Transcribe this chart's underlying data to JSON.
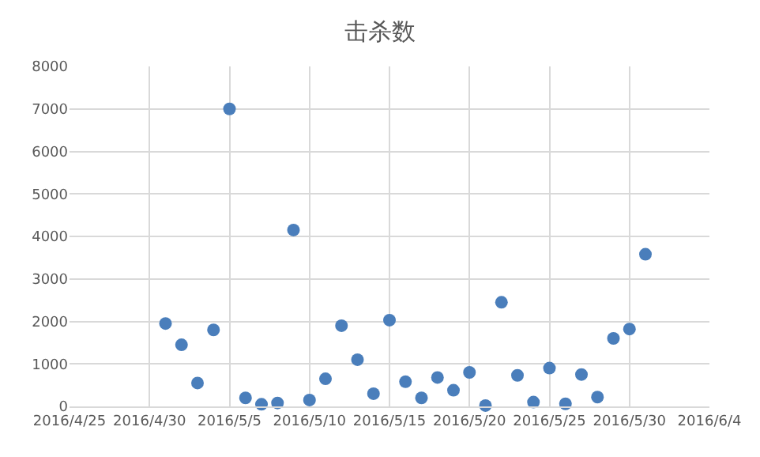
{
  "chart_data": {
    "type": "scatter",
    "title": "击杀数",
    "x": [
      "2016-05-01",
      "2016-05-02",
      "2016-05-03",
      "2016-05-04",
      "2016-05-05",
      "2016-05-06",
      "2016-05-07",
      "2016-05-08",
      "2016-05-09",
      "2016-05-10",
      "2016-05-11",
      "2016-05-12",
      "2016-05-13",
      "2016-05-14",
      "2016-05-15",
      "2016-05-16",
      "2016-05-17",
      "2016-05-18",
      "2016-05-19",
      "2016-05-20",
      "2016-05-21",
      "2016-05-22",
      "2016-05-23",
      "2016-05-24",
      "2016-05-25",
      "2016-05-26",
      "2016-05-27",
      "2016-05-28",
      "2016-05-29",
      "2016-05-30",
      "2016-05-31"
    ],
    "series": [
      {
        "color": "#4a7ebb",
        "values": [
          1950,
          1450,
          550,
          1800,
          7000,
          200,
          50,
          80,
          4150,
          150,
          650,
          1900,
          1100,
          300,
          2030,
          580,
          200,
          680,
          380,
          800,
          20,
          2450,
          730,
          100,
          900,
          60,
          750,
          220,
          1600,
          1820,
          3580
        ]
      }
    ],
    "xlim": [
      "2016-04-25",
      "2016-06-04"
    ],
    "xticks": [
      {
        "value": "2016-04-25",
        "label": "2016/4/25"
      },
      {
        "value": "2016-04-30",
        "label": "2016/4/30"
      },
      {
        "value": "2016-05-05",
        "label": "2016/5/5"
      },
      {
        "value": "2016-05-10",
        "label": "2016/5/10"
      },
      {
        "value": "2016-05-15",
        "label": "2016/5/15"
      },
      {
        "value": "2016-05-20",
        "label": "2016/5/20"
      },
      {
        "value": "2016-05-25",
        "label": "2016/5/25"
      },
      {
        "value": "2016-05-30",
        "label": "2016/5/30"
      },
      {
        "value": "2016-06-04",
        "label": "2016/6/4"
      }
    ],
    "ylim": [
      0,
      8000
    ],
    "yticks": [
      0,
      1000,
      2000,
      3000,
      4000,
      5000,
      6000,
      7000,
      8000
    ],
    "grid": true,
    "marker": "circle"
  }
}
